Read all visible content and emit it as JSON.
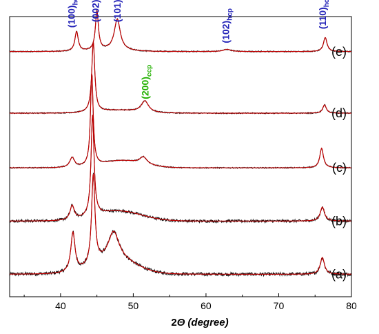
{
  "chart_data": {
    "type": "line",
    "xlabel": "2Θ (degree)",
    "xlabel_prefix": "2",
    "xlabel_symbol": "Θ",
    "xlabel_unit": "(degree)",
    "xlim": [
      33,
      80
    ],
    "x_ticks": [
      40,
      50,
      60,
      70,
      80
    ],
    "y_axis_shown": false,
    "grid": false,
    "colors": {
      "measured": "#111111",
      "fit": "#c00000",
      "hcp_label": "#2323b8",
      "ccp_label": "#22b000"
    },
    "series": [
      {
        "label": "(a)",
        "baseline": 0.08,
        "noise": 0.006,
        "hump": {
          "center": 47.5,
          "width": 4.0,
          "height": 0.05
        },
        "peaks": [
          {
            "x": 41.7,
            "h": 0.14,
            "w": 0.35
          },
          {
            "x": 44.5,
            "h": 0.32,
            "w": 0.28
          },
          {
            "x": 47.3,
            "h": 0.1,
            "w": 0.9
          },
          {
            "x": 76.0,
            "h": 0.06,
            "w": 0.35
          }
        ]
      },
      {
        "label": "(b)",
        "baseline": 0.27,
        "noise": 0.005,
        "hump": {
          "center": 48.0,
          "width": 4.5,
          "height": 0.035
        },
        "peaks": [
          {
            "x": 41.6,
            "h": 0.05,
            "w": 0.35
          },
          {
            "x": 44.4,
            "h": 0.36,
            "w": 0.25
          },
          {
            "x": 76.0,
            "h": 0.05,
            "w": 0.35
          }
        ]
      },
      {
        "label": "(c)",
        "baseline": 0.46,
        "noise": 0.002,
        "hump": {
          "center": 48.5,
          "width": 4.0,
          "height": 0.025
        },
        "peaks": [
          {
            "x": 41.6,
            "h": 0.035,
            "w": 0.4
          },
          {
            "x": 44.3,
            "h": 0.33,
            "w": 0.22
          },
          {
            "x": 51.4,
            "h": 0.025,
            "w": 0.6
          },
          {
            "x": 75.9,
            "h": 0.07,
            "w": 0.3
          }
        ]
      },
      {
        "label": "(d)",
        "baseline": 0.655,
        "noise": 0.002,
        "hump": {
          "center": 48.0,
          "width": 4.0,
          "height": 0.01
        },
        "peaks": [
          {
            "x": 44.5,
            "h": 0.25,
            "w": 0.25
          },
          {
            "x": 51.6,
            "h": 0.04,
            "w": 0.6
          },
          {
            "x": 76.3,
            "h": 0.03,
            "w": 0.3
          }
        ]
      },
      {
        "label": "(e)",
        "baseline": 0.875,
        "noise": 0.002,
        "hump": {
          "center": 47.0,
          "width": 3.0,
          "height": 0.005
        },
        "peaks": [
          {
            "x": 42.2,
            "h": 0.07,
            "w": 0.28
          },
          {
            "x": 45.0,
            "h": 0.14,
            "w": 0.25
          },
          {
            "x": 47.8,
            "h": 0.11,
            "w": 0.5
          },
          {
            "x": 62.9,
            "h": 0.008,
            "w": 0.6
          },
          {
            "x": 76.4,
            "h": 0.05,
            "w": 0.3
          }
        ]
      }
    ],
    "annotations": [
      {
        "text": "(100)",
        "sub": "hcp",
        "x": 41.5,
        "y": 0.96,
        "phase": "hcp"
      },
      {
        "text": "(002)",
        "sub": "hcp",
        "x": 44.8,
        "y": 0.98,
        "phase": "hcp"
      },
      {
        "text": "(101)",
        "sub": "hcp",
        "x": 47.8,
        "y": 0.98,
        "phase": "hcp"
      },
      {
        "text": "(102)",
        "sub": "hcp",
        "x": 62.7,
        "y": 0.905,
        "phase": "hcp"
      },
      {
        "text": "(110)",
        "sub": "hcp",
        "x": 76.0,
        "y": 0.955,
        "phase": "hcp"
      },
      {
        "text": "(200)",
        "sub": "ccp",
        "x": 51.6,
        "y": 0.705,
        "phase": "ccp"
      }
    ]
  }
}
